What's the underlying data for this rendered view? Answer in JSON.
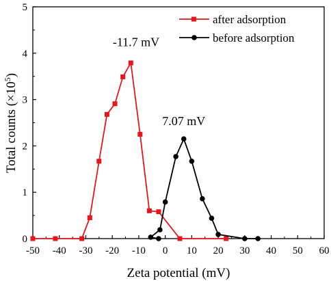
{
  "chart_data": {
    "type": "line",
    "xlabel": "Zeta potential (mV)",
    "ylabel": "Total counts (×10",
    "ylabel_sup": "5",
    "ylabel_close": ")",
    "xlim": [
      -50,
      60
    ],
    "ylim": [
      0,
      5
    ],
    "xticks": [
      -50,
      -40,
      -30,
      -20,
      -10,
      0,
      10,
      20,
      30,
      40,
      50,
      60
    ],
    "yticks": [
      0,
      1,
      2,
      3,
      4,
      5
    ],
    "grid": false,
    "legend_position": "top-right",
    "series": [
      {
        "name": "after adsorption",
        "color": "#e8161b",
        "marker": "square",
        "x": [
          -50,
          -41.5,
          -31.5,
          -28.5,
          -25,
          -22,
          -19,
          -16,
          -13,
          -9.5,
          -6,
          -2.5,
          5.5,
          23
        ],
        "y": [
          0,
          0,
          0,
          0.45,
          1.67,
          2.68,
          2.91,
          3.49,
          3.79,
          2.25,
          0.6,
          0.58,
          0,
          0
        ]
      },
      {
        "name": "before adsorption",
        "color": "#000000",
        "marker": "circle",
        "x": [
          -2.5,
          -5.5,
          -2,
          0,
          4,
          7,
          10,
          14,
          17.5,
          20,
          30,
          35
        ],
        "y": [
          0,
          0.03,
          0.19,
          0.79,
          1.77,
          2.15,
          1.67,
          0.86,
          0.44,
          0.09,
          0,
          0
        ]
      }
    ],
    "annotations": [
      {
        "text": "-11.7 mV",
        "x": -11,
        "y": 4.15,
        "color": "#e8161b"
      },
      {
        "text": "7.07 mV",
        "x": 7,
        "y": 2.45,
        "color": "#000000"
      }
    ]
  }
}
